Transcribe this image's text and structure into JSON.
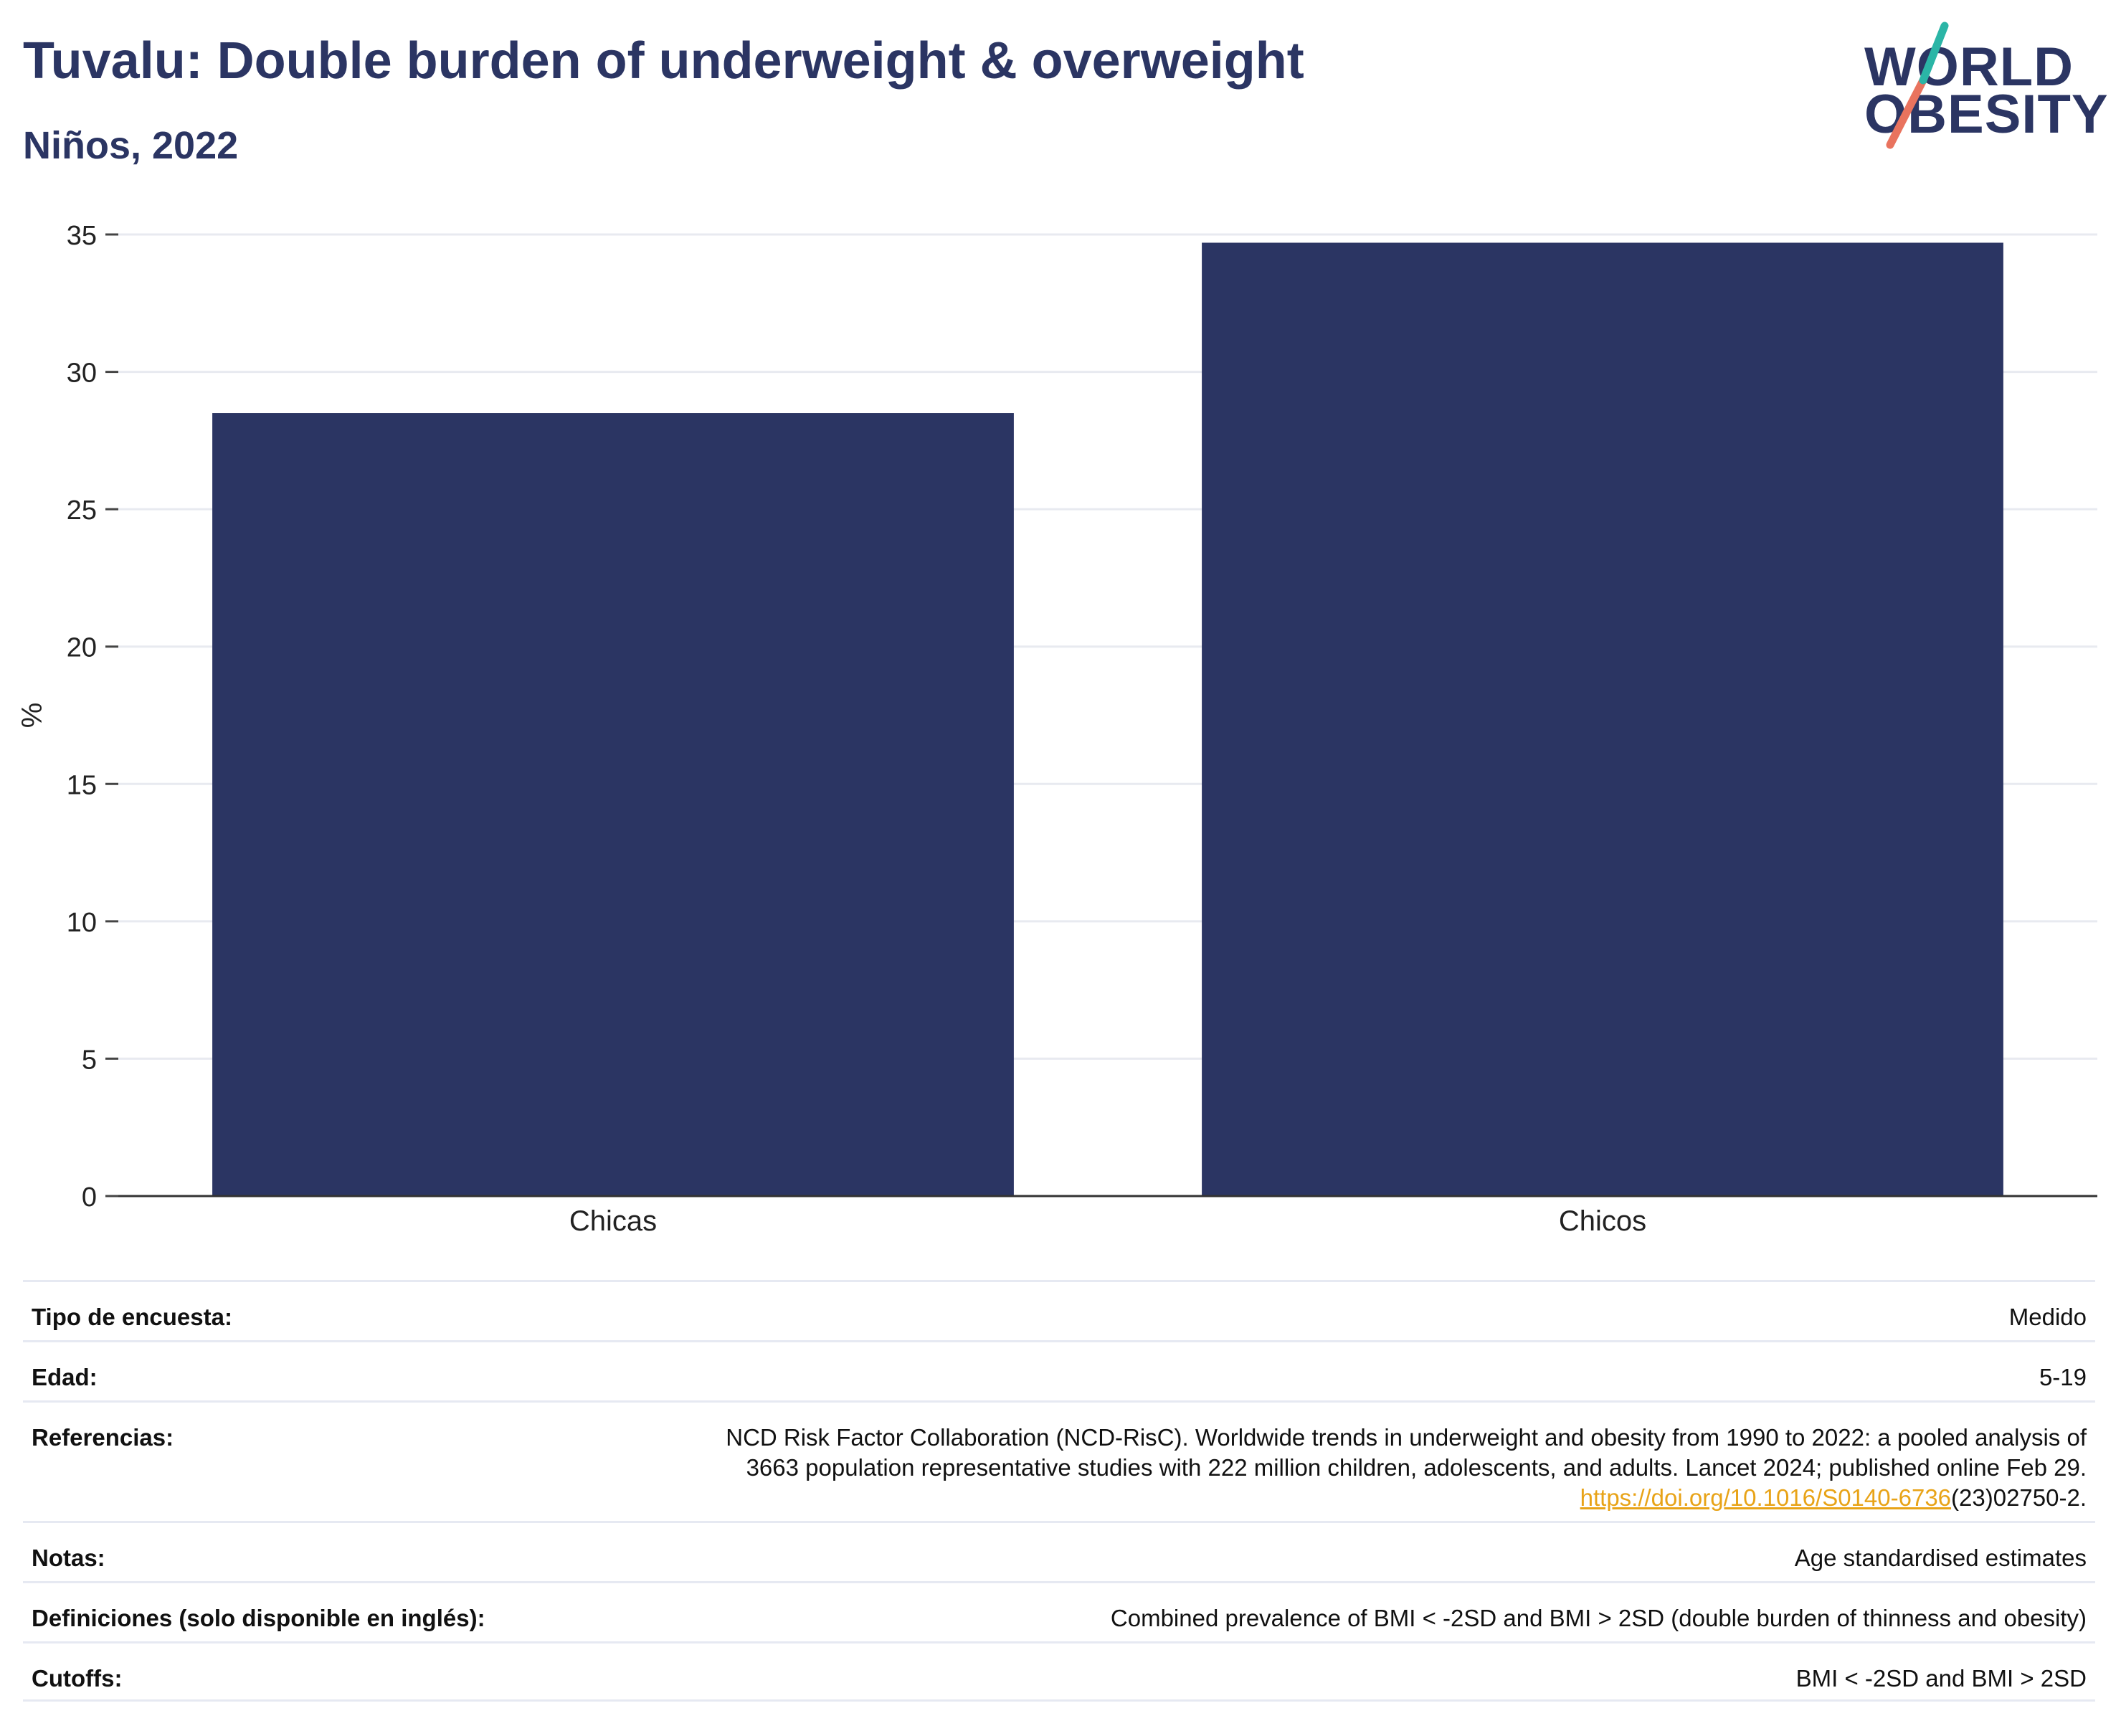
{
  "header": {
    "title": "Tuvalu: Double burden of underweight & overweight",
    "subtitle": "Niños, 2022"
  },
  "logo": {
    "line1": "WORLD",
    "line2": "OBESITY",
    "slash_colors": [
      "#2bb5a6",
      "#e9735e"
    ],
    "text_color": "#2b3563"
  },
  "chart_data": {
    "type": "bar",
    "categories": [
      "Chicas",
      "Chicos"
    ],
    "values": [
      28.5,
      34.7
    ],
    "title": "",
    "xlabel": "",
    "ylabel": "%",
    "ylim": [
      0,
      35
    ],
    "yticks": [
      0,
      5,
      10,
      15,
      20,
      25,
      30,
      35
    ],
    "grid": true,
    "bar_color": "#2b3563"
  },
  "meta": {
    "survey_type_label": "Tipo de encuesta:",
    "survey_type_value": "Medido",
    "age_label": "Edad:",
    "age_value": "5-19",
    "references_label": "Referencias:",
    "references_line1": "NCD Risk Factor Collaboration (NCD-RisC). Worldwide trends in underweight and obesity from 1990 to 2022: a pooled analysis of",
    "references_line2": "3663 population representative studies with 222 million children, adolescents, and adults. Lancet 2024; published online Feb 29.",
    "references_link": "https://doi.org/10.1016/S0140-6736",
    "references_link_tail": "(23)02750-2.",
    "notes_label": "Notas:",
    "notes_value": "Age standardised estimates",
    "definitions_label": "Definiciones (solo disponible en inglés):",
    "definitions_value": "Combined prevalence of BMI < -2SD and BMI > 2SD (double burden of thinness and obesity)",
    "cutoffs_label": "Cutoffs:",
    "cutoffs_value": "BMI < -2SD and BMI > 2SD"
  }
}
